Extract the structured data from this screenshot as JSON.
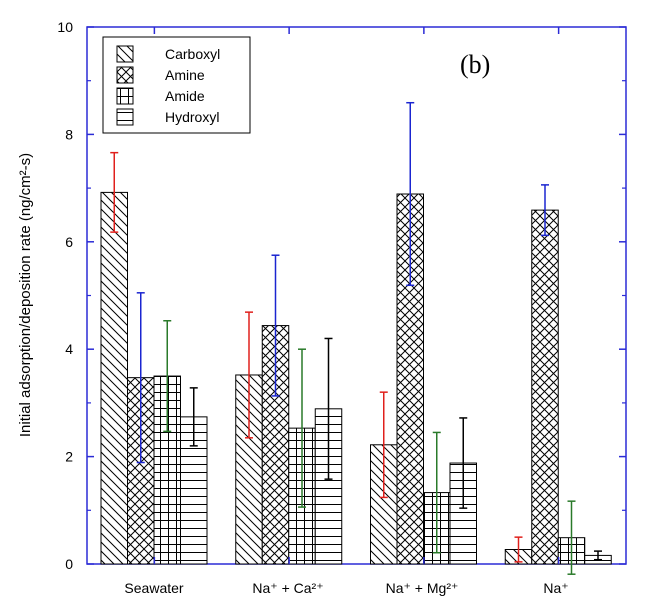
{
  "chart_data": {
    "type": "bar",
    "title": "",
    "annotation": "(b)",
    "xlabel": "",
    "ylabel": "Initial adsorption/deposition rate (ng/cm²-s)",
    "ylim": [
      0,
      10
    ],
    "yticks": [
      "0",
      "2",
      "4",
      "6",
      "8",
      "10"
    ],
    "categories": [
      "Seawater",
      "Na⁺ + Ca²⁺",
      "Na⁺ + Mg²⁺",
      "Na⁺"
    ],
    "series": [
      {
        "name": "Carboxyl",
        "pattern": "diag-right",
        "error_color": "#e0201c",
        "values": [
          6.92,
          3.52,
          2.22,
          0.27
        ],
        "errors": [
          0.74,
          1.17,
          0.98,
          0.23
        ]
      },
      {
        "name": "Amine",
        "pattern": "crosshatch",
        "error_color": "#1a25d0",
        "values": [
          3.47,
          4.44,
          6.89,
          6.59
        ],
        "errors": [
          1.58,
          1.31,
          1.7,
          0.47
        ]
      },
      {
        "name": "Amide",
        "pattern": "grid",
        "error_color": "#2a7a2a",
        "values": [
          3.5,
          2.53,
          1.33,
          0.49
        ],
        "errors": [
          1.03,
          1.47,
          1.12,
          0.68
        ]
      },
      {
        "name": "Hydroxyl",
        "pattern": "horizontal",
        "error_color": "#000000",
        "values": [
          2.74,
          2.89,
          1.88,
          0.16
        ],
        "errors": [
          0.54,
          1.31,
          0.84,
          0.08
        ]
      }
    ],
    "legend_position": "top-left",
    "grid": false,
    "axes_color": "#2b2bd6"
  }
}
